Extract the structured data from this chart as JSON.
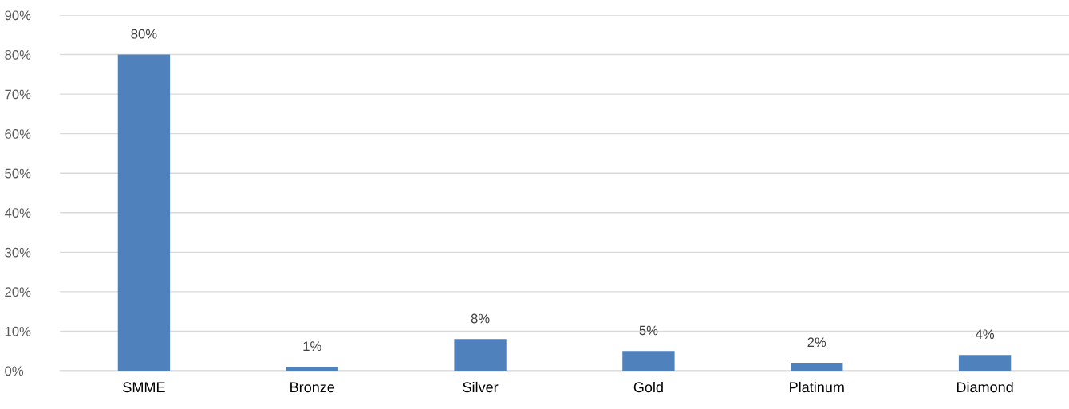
{
  "chart_data": {
    "type": "bar",
    "categories": [
      "SMME",
      "Bronze",
      "Silver",
      "Gold",
      "Platinum",
      "Diamond"
    ],
    "values": [
      80,
      1,
      8,
      5,
      2,
      4
    ],
    "value_labels": [
      "80%",
      "1%",
      "8%",
      "5%",
      "2%",
      "4%"
    ],
    "color": "#4f81bd",
    "ylim": [
      0,
      90
    ],
    "yticks": [
      {
        "value": 0,
        "label": "0%"
      },
      {
        "value": 10,
        "label": "10%"
      },
      {
        "value": 20,
        "label": "20%"
      },
      {
        "value": 30,
        "label": "30%"
      },
      {
        "value": 40,
        "label": "40%"
      },
      {
        "value": 50,
        "label": "50%"
      },
      {
        "value": 60,
        "label": "60%"
      },
      {
        "value": 70,
        "label": "70%"
      },
      {
        "value": 80,
        "label": "80%"
      },
      {
        "value": 90,
        "label": "90%"
      }
    ],
    "grid": "y",
    "legend": false
  }
}
